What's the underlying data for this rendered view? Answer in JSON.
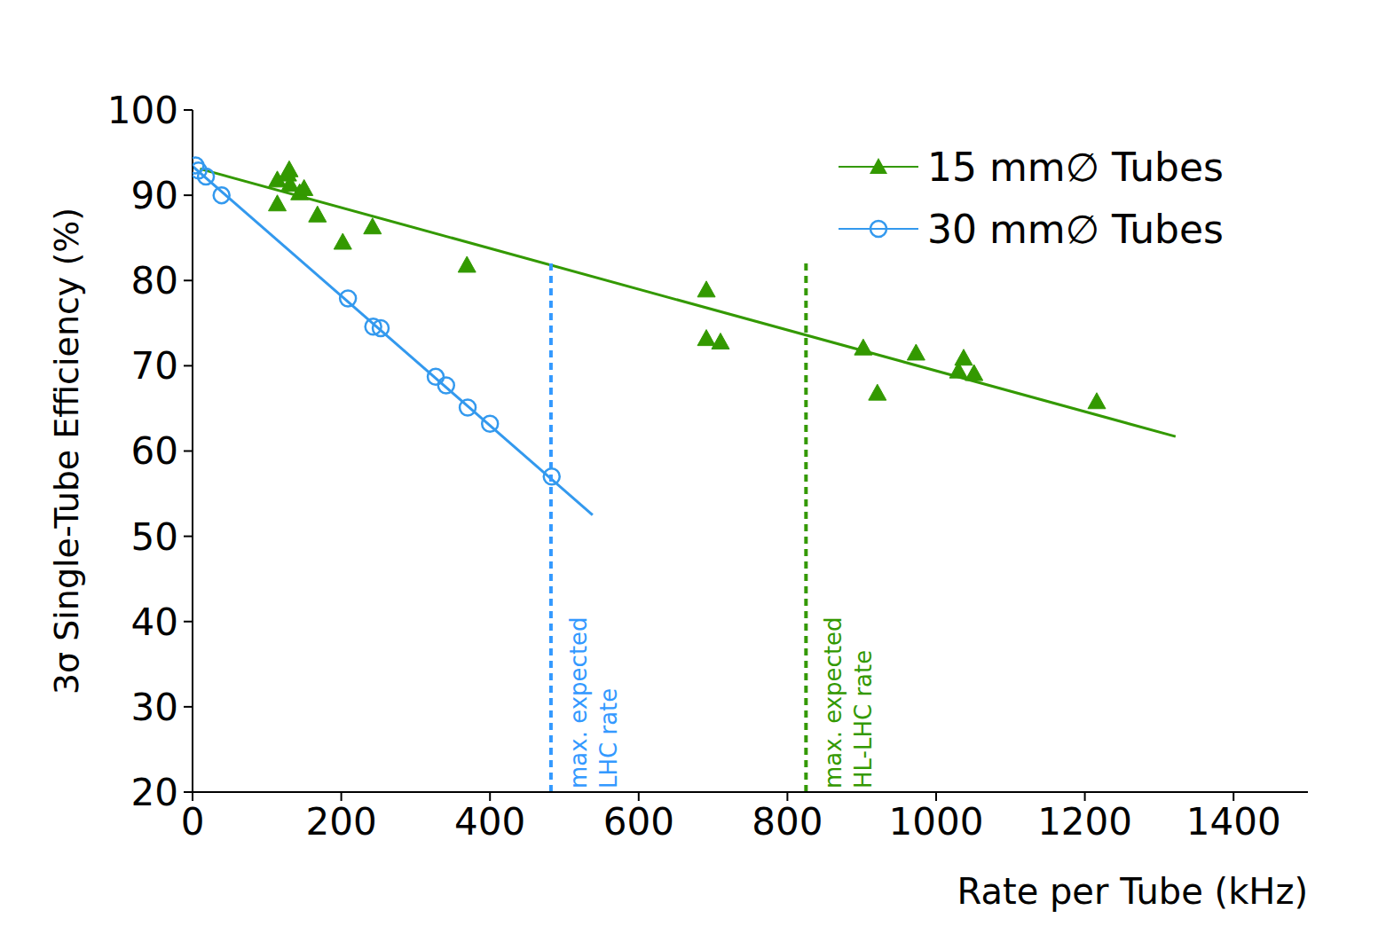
{
  "chart_data": {
    "type": "scatter",
    "x_label": "Rate per Tube (kHz)",
    "y_label": "3σ Single-Tube Efficiency (%)",
    "xlim": [
      0,
      1500
    ],
    "xticks": [
      0,
      200,
      400,
      600,
      800,
      1000,
      1200,
      1400
    ],
    "ylim": [
      20,
      100
    ],
    "yticks": [
      20,
      30,
      40,
      50,
      60,
      70,
      80,
      90,
      100
    ],
    "legend": "upper right",
    "series": [
      {
        "name": "15 mm∅ Tubes",
        "color": "#339900",
        "marker": "triangle",
        "line_style": "solid",
        "x": [
          114,
          114,
          128,
          130,
          131,
          144,
          150,
          168,
          202,
          242,
          369,
          691,
          691,
          710,
          902,
          921,
          973,
          1030,
          1037,
          1051,
          1216
        ],
        "values": [
          91.8,
          89.0,
          92.5,
          93.0,
          91.3,
          90.3,
          90.8,
          87.7,
          84.5,
          86.3,
          81.8,
          78.9,
          73.2,
          72.8,
          72.1,
          66.8,
          71.5,
          69.4,
          70.9,
          69.1,
          65.8
        ],
        "fit_x": [
          10,
          1322
        ],
        "fit_y": [
          93.1,
          61.7
        ]
      },
      {
        "name": "30 mm∅ Tubes",
        "color": "#3399ee",
        "marker": "circle",
        "line_style": "solid",
        "x": [
          4,
          8,
          18,
          39,
          209,
          243,
          253,
          327,
          341,
          370,
          400,
          483
        ],
        "values": [
          93.5,
          92.9,
          92.2,
          90.0,
          77.9,
          74.6,
          74.4,
          68.7,
          67.7,
          65.1,
          63.2,
          57.0
        ],
        "fit_x": [
          0,
          538
        ],
        "fit_y": [
          93.4,
          52.5
        ]
      }
    ],
    "reference_lines": [
      {
        "x": 482,
        "y_end": 82,
        "color": "#3399ff",
        "line_style": "dashed",
        "label": [
          "max. expected",
          "LHC rate"
        ]
      },
      {
        "x": 825,
        "y_end": 82,
        "color": "#339900",
        "line_style": "dashed",
        "label": [
          "max. expected",
          "HL-LHC rate"
        ]
      }
    ]
  }
}
